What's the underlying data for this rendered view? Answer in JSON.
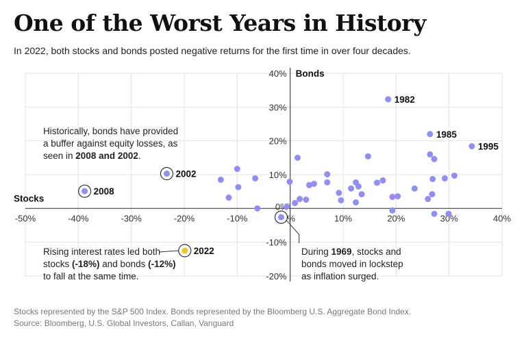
{
  "title": "One of the Worst Years in History",
  "subtitle": "In 2022, both stocks and bonds posted negative returns for the first time in over four decades.",
  "annotations": {
    "buffer": [
      "Historically, bonds have provided",
      "a buffer against equity losses, as",
      "seen in ",
      "2008 and 2002",
      "."
    ],
    "rates": [
      "Rising interest rates led both",
      "stocks ",
      "(-18%)",
      " and bonds ",
      "(-12%)",
      "to fall at the same time."
    ],
    "lockstep": [
      "During ",
      "1969",
      ", stocks and",
      "bonds moved in lockstep",
      "as inflation surged."
    ]
  },
  "footer": {
    "line1": "Stocks represented by the S&P 500 Index. Bonds represented by the Bloomberg U.S. Aggregate Bond Index.",
    "line2": "Source: Bloomberg, U.S. Global Investors, Callan, Vanguard"
  },
  "chart_data": {
    "type": "scatter",
    "xlabel": "Stocks",
    "ylabel": "Bonds",
    "xlim": [
      -50,
      40
    ],
    "ylim": [
      -20,
      40
    ],
    "xticks": [
      "-50%",
      "-40%",
      "-30%",
      "-20%",
      "-10%",
      "0%",
      "10%",
      "20%",
      "30%",
      "40%"
    ],
    "yticks": [
      "-20%",
      "-10%",
      "0%",
      "10%",
      "20%",
      "30%",
      "40%"
    ],
    "grid": true,
    "colors": {
      "points": "#8f8ff7",
      "highlight": "#f5c518"
    },
    "points": [
      [
        1.4,
        15.0
      ],
      [
        -10,
        11.7
      ],
      [
        -13.1,
        8.5
      ],
      [
        -6.6,
        8.9
      ],
      [
        -9.8,
        6.3
      ],
      [
        -11.6,
        3.2
      ],
      [
        -6.2,
        0
      ],
      [
        -0.1,
        7.9
      ],
      [
        -0.6,
        0.6
      ],
      [
        0.9,
        1.6
      ],
      [
        1.8,
        2.8
      ],
      [
        3.0,
        2.6
      ],
      [
        3.6,
        6.9
      ],
      [
        4.5,
        7.3
      ],
      [
        7.0,
        10.1
      ],
      [
        7.0,
        7.7
      ],
      [
        9.2,
        4.6
      ],
      [
        9.6,
        2.4
      ],
      [
        11.5,
        5.9
      ],
      [
        12.4,
        7.7
      ],
      [
        12.9,
        6.5
      ],
      [
        13.5,
        4.2
      ],
      [
        12.4,
        1.8
      ],
      [
        14.7,
        15.4
      ],
      [
        16.4,
        7.6
      ],
      [
        17.5,
        8.3
      ],
      [
        19.3,
        3.4
      ],
      [
        20.3,
        3.6
      ],
      [
        19.3,
        -0.6
      ],
      [
        23.5,
        5.9
      ],
      [
        26.0,
        2.8
      ],
      [
        26.8,
        4.2
      ],
      [
        26.4,
        16.0
      ],
      [
        27.2,
        14.6
      ],
      [
        26.9,
        8.7
      ],
      [
        29.2,
        8.9
      ],
      [
        31.0,
        9.7
      ],
      [
        27.2,
        -1.6
      ],
      [
        29.9,
        -1.6
      ]
    ],
    "labeled_points": [
      {
        "label": "1982",
        "x": 18.5,
        "y": 32.3
      },
      {
        "label": "1985",
        "x": 26.4,
        "y": 22.0
      },
      {
        "label": "1995",
        "x": 34.3,
        "y": 18.4
      },
      {
        "label": "2008",
        "x": -38.8,
        "y": 5.1,
        "circled": true
      },
      {
        "label": "2002",
        "x": -23.3,
        "y": 10.3,
        "circled": true
      },
      {
        "label": "2022",
        "x": -19.9,
        "y": -12.5,
        "circled": true,
        "highlight": true
      },
      {
        "label": "",
        "x": -1.7,
        "y": -2.6,
        "circled": true
      }
    ]
  }
}
